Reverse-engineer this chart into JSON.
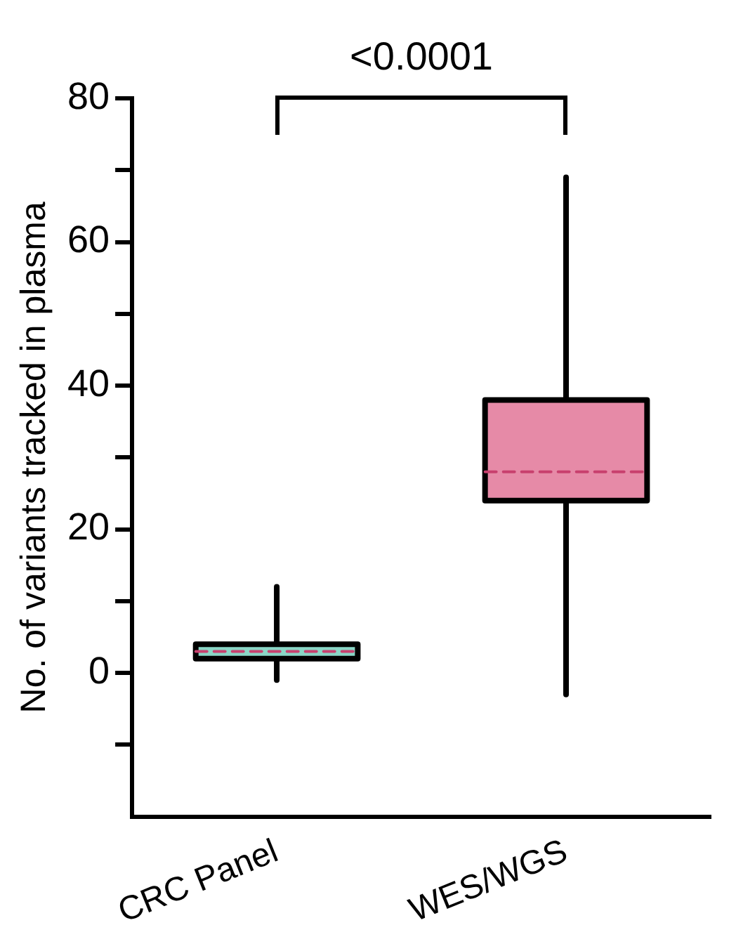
{
  "chart_data": {
    "type": "box",
    "ylabel": "No. of variants tracked in plasma",
    "categories": [
      "CRC Panel",
      "WES/WGS"
    ],
    "boxes": [
      {
        "low": -1,
        "q1": 2,
        "median": 3,
        "q3": 4,
        "high": 12
      },
      {
        "low": -3,
        "q1": 24,
        "median": 28,
        "q3": 38,
        "high": 69
      }
    ],
    "colors": [
      "#8ad6c6",
      "#e68aa7"
    ],
    "ylim": [
      -20,
      80
    ],
    "yticks": [
      {
        "value": -10,
        "label": null
      },
      0,
      {
        "value": 10,
        "label": null
      },
      20,
      {
        "value": 30,
        "label": null
      },
      40,
      {
        "value": 50,
        "label": null
      },
      60,
      {
        "value": 70,
        "label": null
      },
      80
    ],
    "annotations": [
      "<0.0001"
    ],
    "grid": false,
    "legend": false
  }
}
